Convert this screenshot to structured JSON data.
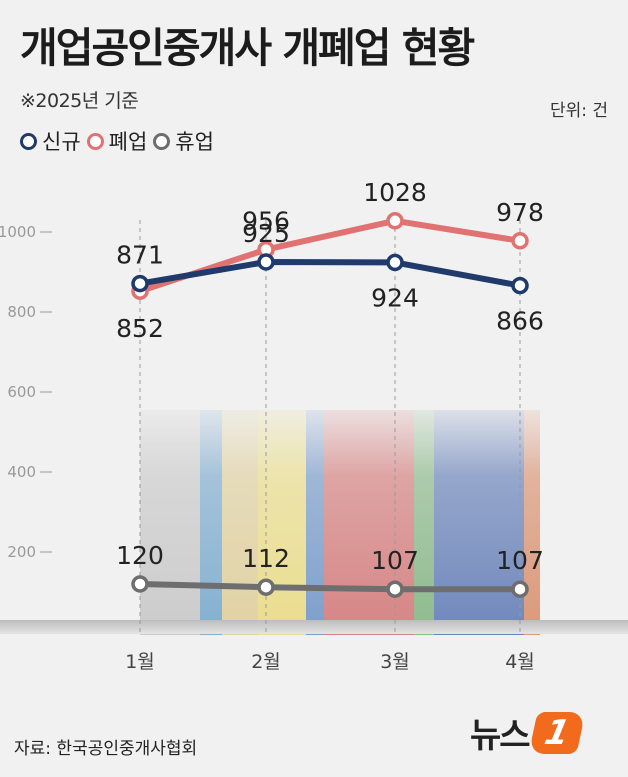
{
  "header": {
    "title": "개업공인중개사 개폐업 현황",
    "subtitle": "※2025년 기준",
    "unit": "단위: 건"
  },
  "source": "자료: 한국공인중개사협회",
  "logo": {
    "word": "뉴스",
    "badge": "1"
  },
  "colors": {
    "신규": "#1f3a6b",
    "폐업": "#e07272",
    "휴업": "#6e6e6e"
  },
  "chart_data": {
    "type": "line",
    "title": "개업공인중개사 개폐업 현황",
    "subtitle": "※2025년 기준",
    "unit": "단위: 건",
    "categories": [
      "1월",
      "2월",
      "3월",
      "4월"
    ],
    "series": [
      {
        "name": "신규",
        "values": [
          871,
          925,
          924,
          866
        ]
      },
      {
        "name": "폐업",
        "values": [
          852,
          956,
          1028,
          978
        ]
      },
      {
        "name": "휴업",
        "values": [
          120,
          112,
          107,
          107
        ]
      }
    ],
    "y_ticks": [
      200,
      400,
      600,
      800,
      1000
    ],
    "ylim": [
      0,
      1140
    ],
    "legend": "top-left",
    "grid": "vertical dashed"
  }
}
